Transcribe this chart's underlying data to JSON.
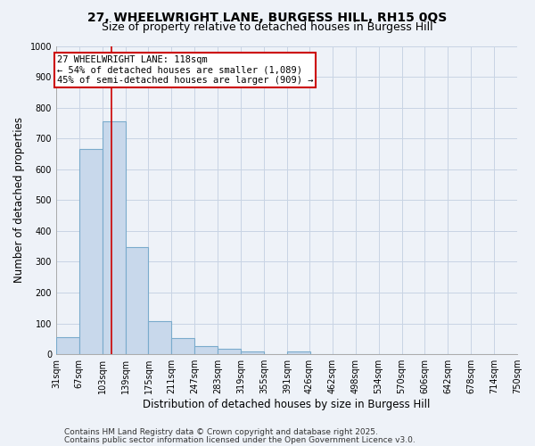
{
  "title": "27, WHEELWRIGHT LANE, BURGESS HILL, RH15 0QS",
  "subtitle": "Size of property relative to detached houses in Burgess Hill",
  "xlabel": "Distribution of detached houses by size in Burgess Hill",
  "ylabel": "Number of detached properties",
  "bin_edges": [
    31,
    67,
    103,
    139,
    175,
    211,
    247,
    283,
    319,
    355,
    391,
    426,
    462,
    498,
    534,
    570,
    606,
    642,
    678,
    714,
    750
  ],
  "bar_heights": [
    55,
    667,
    757,
    347,
    108,
    52,
    27,
    17,
    10,
    0,
    8,
    0,
    0,
    0,
    0,
    0,
    0,
    0,
    0,
    0
  ],
  "bar_color": "#c8d8eb",
  "bar_edge_color": "#7aabcc",
  "bar_edge_width": 0.8,
  "grid_color": "#c8d4e4",
  "background_color": "#eef2f8",
  "red_line_x": 118,
  "red_line_color": "#cc0000",
  "annotation_text": "27 WHEELWRIGHT LANE: 118sqm\n← 54% of detached houses are smaller (1,089)\n45% of semi-detached houses are larger (909) →",
  "annotation_box_color": "#cc0000",
  "annotation_text_color": "#000000",
  "ylim": [
    0,
    1000
  ],
  "yticks": [
    0,
    100,
    200,
    300,
    400,
    500,
    600,
    700,
    800,
    900,
    1000
  ],
  "footer_line1": "Contains HM Land Registry data © Crown copyright and database right 2025.",
  "footer_line2": "Contains public sector information licensed under the Open Government Licence v3.0.",
  "title_fontsize": 10,
  "subtitle_fontsize": 9,
  "axis_label_fontsize": 8.5,
  "tick_fontsize": 7,
  "annotation_fontsize": 7.5,
  "footer_fontsize": 6.5
}
